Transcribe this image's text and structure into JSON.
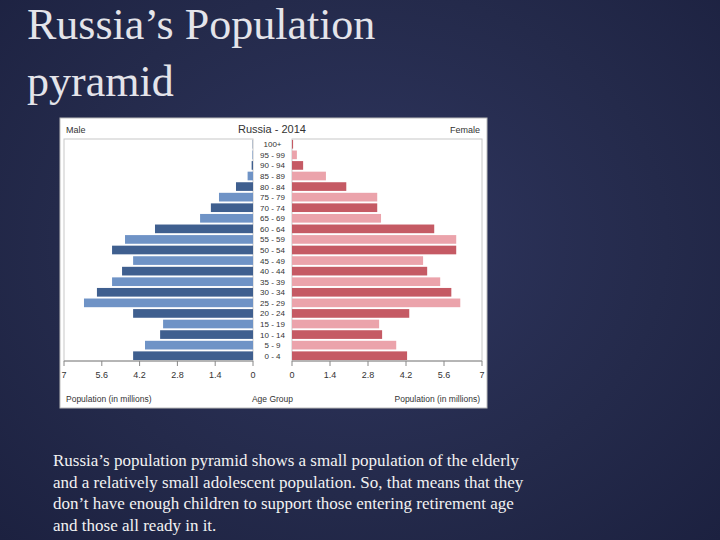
{
  "slide": {
    "title": "Russia’s Population pyramid",
    "caption_lines": [
      "Russia’s population pyramid shows a small population of the elderly",
      "and a relatively small adolescent population. So, that means that they",
      "don’t have enough children to support those entering retirement age",
      "and those all ready in it."
    ]
  },
  "chart_data": {
    "type": "bar",
    "orientation": "horizontal",
    "title": "Russia - 2014",
    "x_label": "Population (in millions)",
    "y_label": "Age Group",
    "categories": [
      "0 - 4",
      "5 - 9",
      "10 - 14",
      "15 - 19",
      "20 - 24",
      "25 - 29",
      "30 - 34",
      "35 - 39",
      "40 - 44",
      "45 - 49",
      "50 - 54",
      "55 - 59",
      "60 - 64",
      "65 - 69",
      "70 - 74",
      "75 - 79",
      "80 - 84",
      "85 - 89",
      "90 - 94",
      "95 - 99",
      "100+"
    ],
    "xlim": [
      0,
      7
    ],
    "xticks": [
      0,
      1.4,
      2.8,
      4.2,
      5.6,
      7
    ],
    "series": [
      {
        "name": "Male",
        "colors": [
          "#3f5f8f",
          "#6f93c6",
          "#3f5f8f",
          "#6f93c6",
          "#3f5f8f",
          "#6f93c6",
          "#3f5f8f",
          "#6f93c6",
          "#3f5f8f",
          "#6f93c6",
          "#3f5f8f",
          "#6f93c6",
          "#3f5f8f",
          "#6f93c6",
          "#3f5f8f",
          "#6f93c6",
          "#3f5f8f",
          "#6f93c6",
          "#3f5f8f",
          "#6f93c6",
          "#3f5f8f"
        ],
        "values": [
          4.44,
          4.0,
          3.44,
          3.33,
          4.44,
          6.26,
          5.78,
          5.22,
          4.85,
          4.44,
          5.22,
          4.74,
          3.63,
          1.96,
          1.56,
          1.26,
          0.63,
          0.2,
          0.05,
          0.02,
          0.01
        ]
      },
      {
        "name": "Female",
        "colors": [
          "#c55a64",
          "#eba3ab",
          "#c55a64",
          "#eba3ab",
          "#c55a64",
          "#eba3ab",
          "#c55a64",
          "#eba3ab",
          "#c55a64",
          "#eba3ab",
          "#c55a64",
          "#eba3ab",
          "#c55a64",
          "#eba3ab",
          "#c55a64",
          "#eba3ab",
          "#c55a64",
          "#eba3ab",
          "#c55a64",
          "#eba3ab",
          "#c55a64"
        ],
        "values": [
          4.24,
          3.84,
          3.32,
          3.21,
          4.32,
          6.2,
          5.87,
          5.46,
          4.98,
          4.83,
          6.05,
          6.05,
          5.24,
          3.28,
          3.14,
          3.14,
          2.0,
          1.25,
          0.41,
          0.18,
          0.04
        ]
      }
    ]
  }
}
